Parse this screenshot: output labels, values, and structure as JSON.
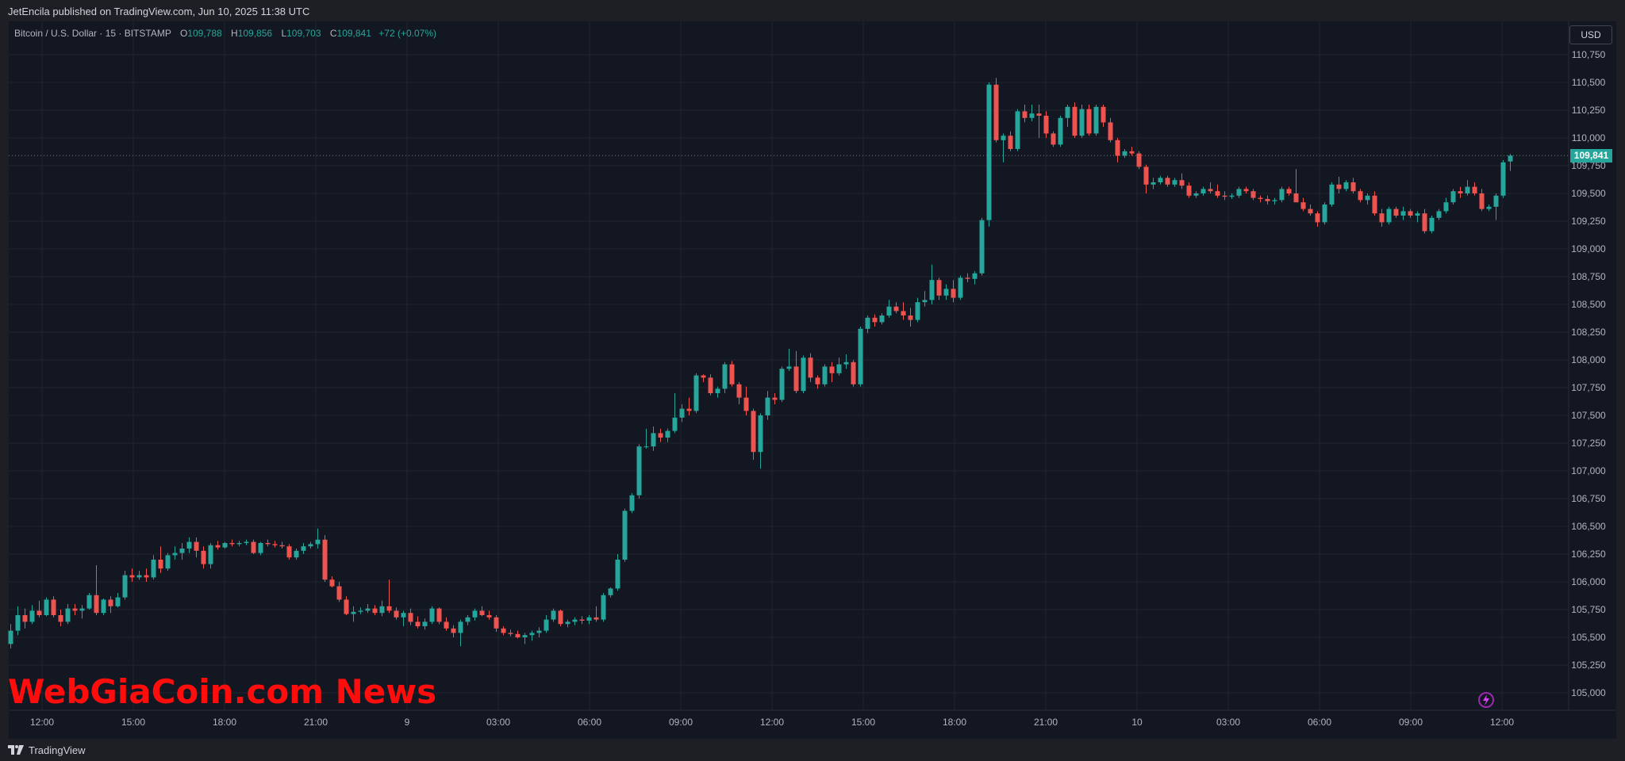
{
  "publisher_line": "JetEncila published on TradingView.com, Jun 10, 2025 11:38 UTC",
  "legend": {
    "symbol": "Bitcoin / U.S. Dollar · 15 · BITSTAMP",
    "o_label": "O",
    "o_value": "109,788",
    "h_label": "H",
    "h_value": "109,856",
    "l_label": "L",
    "l_value": "109,703",
    "c_label": "C",
    "c_value": "109,841",
    "change": "+72 (+0.07%)"
  },
  "currency": "USD",
  "last_price_label": "109,841",
  "watermark": "WebGiaCoin.com News",
  "footer_brand": "TradingView",
  "colors": {
    "up": "#26a69a",
    "down": "#ef5350",
    "background": "#131722",
    "grid": "#1f2430",
    "axis_text": "#b2b5be",
    "watermark": "#ff0d0d"
  },
  "chart_data": {
    "type": "candlestick",
    "interval": "15",
    "y_axis_side": "right",
    "y_ticks": [
      105000,
      105250,
      105500,
      105750,
      106000,
      106250,
      106500,
      106750,
      107000,
      107250,
      107500,
      107750,
      108000,
      108250,
      108500,
      108750,
      109000,
      109250,
      109500,
      109750,
      110000,
      110250,
      110500,
      110750
    ],
    "y_tick_labels": [
      "105,000",
      "105,250",
      "105,500",
      "105,750",
      "106,000",
      "106,250",
      "106,500",
      "106,750",
      "107,000",
      "107,250",
      "107,500",
      "107,750",
      "108,000",
      "108,250",
      "108,500",
      "108,750",
      "109,000",
      "109,250",
      "109,500",
      "109,750",
      "110,000",
      "110,250",
      "110,500",
      "110,750"
    ],
    "ylim": [
      104900,
      110900
    ],
    "x_tick_labels": [
      "12:00",
      "15:00",
      "18:00",
      "21:00",
      "9",
      "03:00",
      "06:00",
      "09:00",
      "12:00",
      "15:00",
      "18:00",
      "21:00",
      "10",
      "03:00",
      "06:00",
      "09:00",
      "12:00"
    ],
    "last_price": 109841,
    "candles": [
      [
        105440,
        105620,
        105400,
        105560
      ],
      [
        105560,
        105780,
        105520,
        105700
      ],
      [
        105700,
        105760,
        105580,
        105640
      ],
      [
        105640,
        105790,
        105620,
        105740
      ],
      [
        105740,
        105830,
        105680,
        105700
      ],
      [
        105700,
        105860,
        105690,
        105840
      ],
      [
        105840,
        105870,
        105680,
        105700
      ],
      [
        105700,
        105750,
        105600,
        105640
      ],
      [
        105640,
        105800,
        105620,
        105760
      ],
      [
        105760,
        105800,
        105700,
        105740
      ],
      [
        105740,
        105790,
        105670,
        105760
      ],
      [
        105760,
        105900,
        105750,
        105880
      ],
      [
        105880,
        106150,
        105700,
        105720
      ],
      [
        105720,
        105850,
        105700,
        105840
      ],
      [
        105840,
        105870,
        105720,
        105780
      ],
      [
        105780,
        105900,
        105770,
        105860
      ],
      [
        105860,
        106100,
        105840,
        106060
      ],
      [
        106060,
        106120,
        106000,
        106040
      ],
      [
        106040,
        106100,
        106020,
        106060
      ],
      [
        106060,
        106120,
        106000,
        106040
      ],
      [
        106040,
        106240,
        106020,
        106200
      ],
      [
        106200,
        106320,
        106080,
        106120
      ],
      [
        106120,
        106260,
        106100,
        106240
      ],
      [
        106240,
        106320,
        106200,
        106260
      ],
      [
        106260,
        106350,
        106200,
        106300
      ],
      [
        106300,
        106400,
        106260,
        106360
      ],
      [
        106360,
        106400,
        106220,
        106280
      ],
      [
        106280,
        106320,
        106120,
        106160
      ],
      [
        106160,
        106350,
        106120,
        106330
      ],
      [
        106330,
        106370,
        106290,
        106310
      ],
      [
        106310,
        106360,
        106300,
        106350
      ],
      [
        106350,
        106380,
        106320,
        106340
      ],
      [
        106340,
        106370,
        106320,
        106350
      ],
      [
        106350,
        106380,
        106330,
        106360
      ],
      [
        106360,
        106380,
        106250,
        106260
      ],
      [
        106260,
        106360,
        106240,
        106350
      ],
      [
        106350,
        106380,
        106320,
        106340
      ],
      [
        106340,
        106370,
        106310,
        106330
      ],
      [
        106330,
        106360,
        106300,
        106320
      ],
      [
        106320,
        106340,
        106200,
        106220
      ],
      [
        106220,
        106300,
        106200,
        106280
      ],
      [
        106280,
        106350,
        106250,
        106320
      ],
      [
        106320,
        106360,
        106300,
        106340
      ],
      [
        106340,
        106480,
        106300,
        106380
      ],
      [
        106380,
        106420,
        106000,
        106020
      ],
      [
        106020,
        106050,
        105950,
        105960
      ],
      [
        105960,
        106000,
        105820,
        105840
      ],
      [
        105840,
        105870,
        105700,
        105710
      ],
      [
        105710,
        105780,
        105640,
        105730
      ],
      [
        105730,
        105770,
        105710,
        105740
      ],
      [
        105740,
        105800,
        105720,
        105760
      ],
      [
        105760,
        105790,
        105700,
        105720
      ],
      [
        105720,
        105830,
        105690,
        105780
      ],
      [
        105780,
        106020,
        105720,
        105740
      ],
      [
        105740,
        105770,
        105660,
        105680
      ],
      [
        105680,
        105740,
        105600,
        105720
      ],
      [
        105720,
        105760,
        105610,
        105640
      ],
      [
        105640,
        105690,
        105580,
        105600
      ],
      [
        105600,
        105670,
        105570,
        105640
      ],
      [
        105640,
        105780,
        105620,
        105760
      ],
      [
        105760,
        105770,
        105620,
        105640
      ],
      [
        105640,
        105680,
        105560,
        105580
      ],
      [
        105580,
        105610,
        105500,
        105540
      ],
      [
        105540,
        105660,
        105420,
        105640
      ],
      [
        105640,
        105700,
        105610,
        105680
      ],
      [
        105680,
        105760,
        105650,
        105740
      ],
      [
        105740,
        105780,
        105690,
        105700
      ],
      [
        105700,
        105740,
        105660,
        105680
      ],
      [
        105680,
        105700,
        105550,
        105580
      ],
      [
        105580,
        105600,
        105520,
        105540
      ],
      [
        105540,
        105570,
        105510,
        105530
      ],
      [
        105530,
        105560,
        105490,
        105500
      ],
      [
        105500,
        105540,
        105440,
        105520
      ],
      [
        105520,
        105560,
        105470,
        105540
      ],
      [
        105540,
        105590,
        105500,
        105560
      ],
      [
        105560,
        105700,
        105540,
        105660
      ],
      [
        105660,
        105760,
        105640,
        105740
      ],
      [
        105740,
        105750,
        105600,
        105620
      ],
      [
        105620,
        105660,
        105590,
        105640
      ],
      [
        105640,
        105680,
        105610,
        105660
      ],
      [
        105660,
        105690,
        105620,
        105650
      ],
      [
        105650,
        105700,
        105620,
        105680
      ],
      [
        105680,
        105780,
        105640,
        105660
      ],
      [
        105660,
        105900,
        105640,
        105880
      ],
      [
        105880,
        105950,
        105860,
        105940
      ],
      [
        105940,
        106250,
        105920,
        106200
      ],
      [
        106200,
        106660,
        106180,
        106640
      ],
      [
        106640,
        106800,
        106620,
        106780
      ],
      [
        106780,
        107240,
        106750,
        107220
      ],
      [
        107220,
        107380,
        107200,
        107220
      ],
      [
        107220,
        107400,
        107180,
        107340
      ],
      [
        107340,
        107380,
        107260,
        107300
      ],
      [
        107300,
        107380,
        107260,
        107360
      ],
      [
        107360,
        107700,
        107340,
        107480
      ],
      [
        107480,
        107600,
        107440,
        107560
      ],
      [
        107560,
        107660,
        107500,
        107540
      ],
      [
        107540,
        107880,
        107520,
        107860
      ],
      [
        107860,
        107870,
        107800,
        107840
      ],
      [
        107840,
        107870,
        107680,
        107700
      ],
      [
        107700,
        107760,
        107660,
        107740
      ],
      [
        107740,
        107980,
        107700,
        107960
      ],
      [
        107960,
        107990,
        107760,
        107780
      ],
      [
        107780,
        107800,
        107600,
        107660
      ],
      [
        107660,
        107760,
        107500,
        107540
      ],
      [
        107540,
        107560,
        107100,
        107170
      ],
      [
        107170,
        107520,
        107020,
        107500
      ],
      [
        107500,
        107720,
        107460,
        107660
      ],
      [
        107660,
        107700,
        107600,
        107640
      ],
      [
        107640,
        107940,
        107620,
        107920
      ],
      [
        107920,
        108100,
        107900,
        107940
      ],
      [
        107940,
        108080,
        107700,
        107720
      ],
      [
        107720,
        108040,
        107700,
        108020
      ],
      [
        108020,
        108060,
        107800,
        107840
      ],
      [
        107840,
        107860,
        107740,
        107780
      ],
      [
        107780,
        107960,
        107760,
        107940
      ],
      [
        107940,
        107980,
        107800,
        107880
      ],
      [
        107880,
        108020,
        107860,
        107960
      ],
      [
        107960,
        108050,
        107920,
        107980
      ],
      [
        107980,
        108000,
        107760,
        107780
      ],
      [
        107780,
        108300,
        107760,
        108280
      ],
      [
        108280,
        108400,
        108240,
        108380
      ],
      [
        108380,
        108410,
        108300,
        108340
      ],
      [
        108340,
        108420,
        108320,
        108400
      ],
      [
        108400,
        108540,
        108380,
        108480
      ],
      [
        108480,
        108520,
        108420,
        108440
      ],
      [
        108440,
        108520,
        108360,
        108400
      ],
      [
        108400,
        108470,
        108300,
        108360
      ],
      [
        108360,
        108560,
        108340,
        108520
      ],
      [
        108520,
        108620,
        108480,
        108540
      ],
      [
        108540,
        108860,
        108500,
        108720
      ],
      [
        108720,
        108740,
        108540,
        108580
      ],
      [
        108580,
        108680,
        108540,
        108640
      ],
      [
        108640,
        108720,
        108520,
        108560
      ],
      [
        108560,
        108760,
        108540,
        108740
      ],
      [
        108740,
        108780,
        108700,
        108730
      ],
      [
        108730,
        108800,
        108680,
        108780
      ],
      [
        108780,
        109280,
        108760,
        109260
      ],
      [
        109260,
        110500,
        109200,
        110480
      ],
      [
        110480,
        110540,
        109960,
        109980
      ],
      [
        109980,
        110040,
        109780,
        110020
      ],
      [
        110020,
        110060,
        109880,
        109900
      ],
      [
        109900,
        110260,
        109880,
        110240
      ],
      [
        110240,
        110300,
        110140,
        110180
      ],
      [
        110180,
        110300,
        110150,
        110220
      ],
      [
        110220,
        110300,
        110000,
        110200
      ],
      [
        110200,
        110240,
        110000,
        110040
      ],
      [
        110040,
        110060,
        109920,
        109940
      ],
      [
        109940,
        110200,
        109920,
        110180
      ],
      [
        110180,
        110300,
        110100,
        110280
      ],
      [
        110280,
        110320,
        110000,
        110020
      ],
      [
        110020,
        110300,
        110000,
        110260
      ],
      [
        110260,
        110300,
        110020,
        110040
      ],
      [
        110040,
        110300,
        110020,
        110280
      ],
      [
        110280,
        110300,
        110100,
        110140
      ],
      [
        110140,
        110180,
        109960,
        109980
      ],
      [
        109980,
        110000,
        109780,
        109840
      ],
      [
        109840,
        109900,
        109820,
        109880
      ],
      [
        109880,
        109920,
        109840,
        109860
      ],
      [
        109860,
        109880,
        109720,
        109740
      ],
      [
        109740,
        109760,
        109500,
        109580
      ],
      [
        109580,
        109640,
        109540,
        109600
      ],
      [
        109600,
        109660,
        109580,
        109640
      ],
      [
        109640,
        109660,
        109560,
        109580
      ],
      [
        109580,
        109640,
        109560,
        109620
      ],
      [
        109620,
        109680,
        109540,
        109570
      ],
      [
        109570,
        109600,
        109460,
        109480
      ],
      [
        109480,
        109520,
        109460,
        109500
      ],
      [
        109500,
        109560,
        109480,
        109540
      ],
      [
        109540,
        109600,
        109500,
        109520
      ],
      [
        109520,
        109580,
        109460,
        109480
      ],
      [
        109480,
        109520,
        109440,
        109470
      ],
      [
        109470,
        109500,
        109450,
        109480
      ],
      [
        109480,
        109560,
        109460,
        109540
      ],
      [
        109540,
        109560,
        109500,
        109520
      ],
      [
        109520,
        109540,
        109440,
        109460
      ],
      [
        109460,
        109480,
        109420,
        109450
      ],
      [
        109450,
        109480,
        109400,
        109430
      ],
      [
        109430,
        109460,
        109400,
        109440
      ],
      [
        109440,
        109560,
        109420,
        109540
      ],
      [
        109540,
        109560,
        109480,
        109500
      ],
      [
        109500,
        109720,
        109480,
        109420
      ],
      [
        109420,
        109460,
        109340,
        109360
      ],
      [
        109360,
        109400,
        109300,
        109320
      ],
      [
        109320,
        109340,
        109200,
        109240
      ],
      [
        109240,
        109420,
        109220,
        109400
      ],
      [
        109400,
        109600,
        109380,
        109580
      ],
      [
        109580,
        109650,
        109500,
        109540
      ],
      [
        109540,
        109620,
        109520,
        109600
      ],
      [
        109600,
        109640,
        109500,
        109520
      ],
      [
        109520,
        109540,
        109420,
        109440
      ],
      [
        109440,
        109500,
        109400,
        109480
      ],
      [
        109480,
        109520,
        109300,
        109320
      ],
      [
        109320,
        109360,
        109200,
        109240
      ],
      [
        109240,
        109380,
        109220,
        109360
      ],
      [
        109360,
        109380,
        109280,
        109300
      ],
      [
        109300,
        109380,
        109260,
        109340
      ],
      [
        109340,
        109360,
        109280,
        109300
      ],
      [
        109300,
        109340,
        109240,
        109320
      ],
      [
        109320,
        109360,
        109140,
        109160
      ],
      [
        109160,
        109300,
        109140,
        109280
      ],
      [
        109280,
        109360,
        109260,
        109340
      ],
      [
        109340,
        109460,
        109320,
        109420
      ],
      [
        109420,
        109540,
        109400,
        109520
      ],
      [
        109520,
        109560,
        109460,
        109500
      ],
      [
        109500,
        109620,
        109480,
        109560
      ],
      [
        109560,
        109600,
        109480,
        109500
      ],
      [
        109500,
        109540,
        109340,
        109360
      ],
      [
        109360,
        109400,
        109340,
        109380
      ],
      [
        109380,
        109500,
        109260,
        109480
      ],
      [
        109480,
        109800,
        109460,
        109780
      ],
      [
        109788,
        109856,
        109703,
        109841
      ]
    ]
  }
}
